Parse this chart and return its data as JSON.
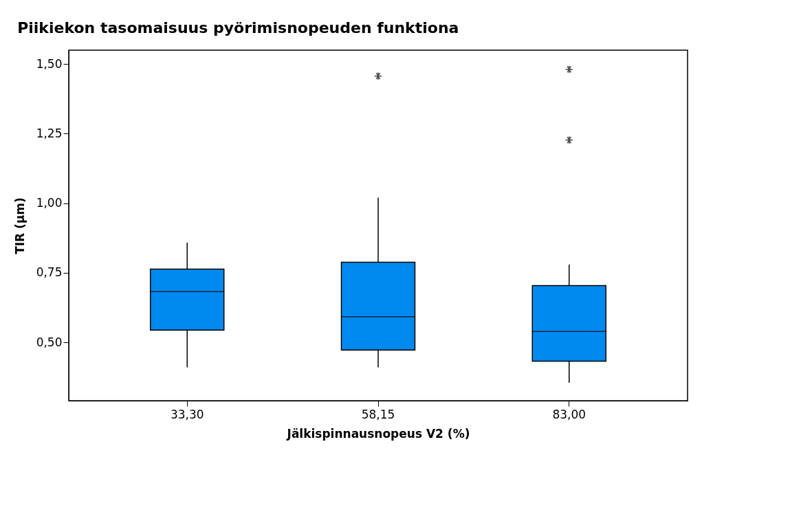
{
  "chart_data": {
    "type": "box",
    "title": "Piikiekon tasomaisuus pyörimisnopeuden funktiona",
    "xlabel": "Jälkispinnausnopeus V2 (%)",
    "ylabel": "TIR (µm)",
    "categories": [
      "33,30",
      "58,15",
      "83,00"
    ],
    "series": [
      {
        "color": "#0089ef",
        "boxes": [
          {
            "low": 0.41,
            "q1": 0.544,
            "median": 0.682,
            "q3": 0.763,
            "high": 0.858
          },
          {
            "low": 0.41,
            "q1": 0.472,
            "median": 0.592,
            "q3": 0.788,
            "high": 1.02,
            "outliers": [
              1.457
            ]
          },
          {
            "low": 0.354,
            "q1": 0.432,
            "median": 0.539,
            "q3": 0.704,
            "high": 0.779,
            "outliers": [
              1.481,
              1.227
            ]
          }
        ]
      }
    ],
    "ylim": [
      0.29,
      1.55
    ],
    "yticks": [
      {
        "value": 0.5,
        "label": "0,50"
      },
      {
        "value": 0.75,
        "label": "0,75"
      },
      {
        "value": 1.0,
        "label": "1,00"
      },
      {
        "value": 1.25,
        "label": "1,25"
      },
      {
        "value": 1.5,
        "label": "1,50"
      }
    ],
    "grid": false
  }
}
